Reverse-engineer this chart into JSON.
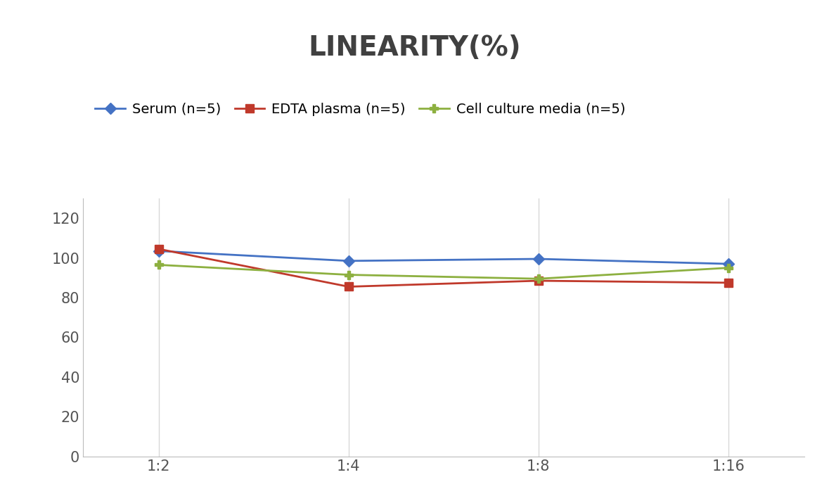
{
  "title": "LINEARITY(%)",
  "title_fontsize": 28,
  "title_fontweight": "bold",
  "title_color": "#404040",
  "x_labels": [
    "1:2",
    "1:4",
    "1:8",
    "1:16"
  ],
  "x_positions": [
    0,
    1,
    2,
    3
  ],
  "series": [
    {
      "label": "Serum (n=5)",
      "values": [
        103.5,
        98.5,
        99.5,
        97.0
      ],
      "color": "#4472C4",
      "marker": "D",
      "marker_size": 8,
      "linewidth": 2.0
    },
    {
      "label": "EDTA plasma (n=5)",
      "values": [
        104.5,
        85.5,
        88.5,
        87.5
      ],
      "color": "#C0392B",
      "marker": "s",
      "marker_size": 8,
      "linewidth": 2.0
    },
    {
      "label": "Cell culture media (n=5)",
      "values": [
        96.5,
        91.5,
        89.5,
        95.0
      ],
      "color": "#8DB040",
      "marker": "P",
      "marker_size": 9,
      "linewidth": 2.0
    }
  ],
  "ylim": [
    0,
    130
  ],
  "yticks": [
    0,
    20,
    40,
    60,
    80,
    100,
    120
  ],
  "background_color": "#ffffff",
  "grid_color": "#d8d8d8",
  "legend_fontsize": 14,
  "tick_fontsize": 15,
  "tick_color": "#555555"
}
